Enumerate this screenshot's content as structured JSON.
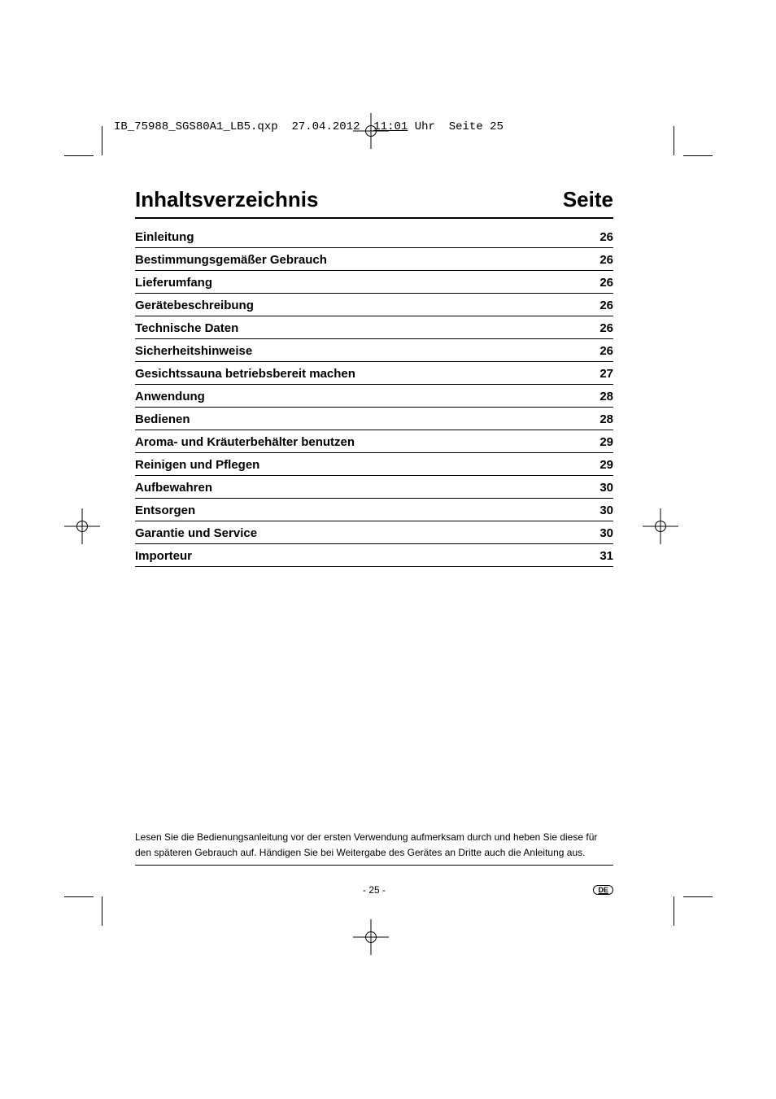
{
  "print_header": {
    "filename": "IB_75988_SGS80A1_LB5.qxp",
    "date": "27.04.2012",
    "time_underlined": "11:01",
    "time_rest": " Uhr",
    "page_info": "Seite 25"
  },
  "toc": {
    "title_left": "Inhaltsverzeichnis",
    "title_right": "Seite",
    "entries": [
      {
        "heading": "Einleitung",
        "page": "26"
      },
      {
        "heading": "Bestimmungsgemäßer Gebrauch",
        "page": "26"
      },
      {
        "heading": "Lieferumfang",
        "page": "26"
      },
      {
        "heading": "Gerätebeschreibung",
        "page": "26"
      },
      {
        "heading": "Technische Daten",
        "page": "26"
      },
      {
        "heading": "Sicherheitshinweise",
        "page": "26"
      },
      {
        "heading": "Gesichtssauna betriebsbereit machen",
        "page": "27"
      },
      {
        "heading": "Anwendung",
        "page": "28"
      },
      {
        "heading": "Bedienen",
        "page": "28"
      },
      {
        "heading": "Aroma- und Kräuterbehälter benutzen",
        "page": "29"
      },
      {
        "heading": "Reinigen und Pflegen",
        "page": "29"
      },
      {
        "heading": "Aufbewahren",
        "page": "30"
      },
      {
        "heading": "Entsorgen",
        "page": "30"
      },
      {
        "heading": "Garantie und Service",
        "page": "30"
      },
      {
        "heading": "Importeur",
        "page": "31"
      }
    ]
  },
  "disclaimer": "Lesen Sie die Bedienungsanleitung vor der ersten Verwendung aufmerksam durch und heben Sie diese für den späteren Gebrauch auf. Händigen Sie bei Weitergabe des Gerätes an Dritte auch die Anleitung aus.",
  "footer": {
    "page_number": "- 25 -",
    "lang": "DE"
  }
}
